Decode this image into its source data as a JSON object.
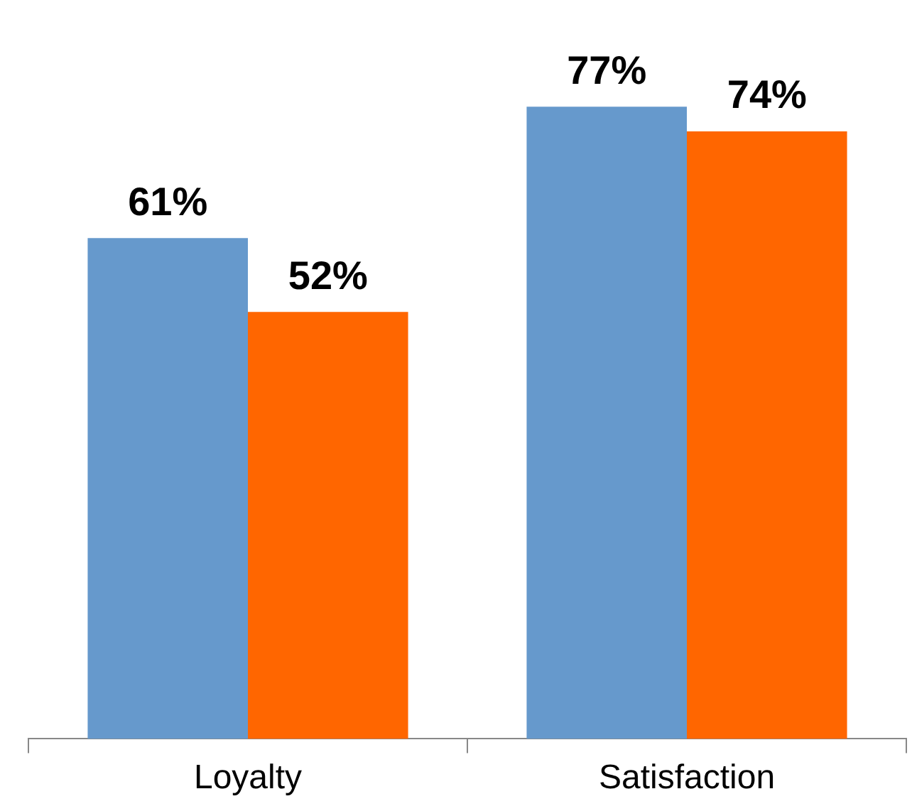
{
  "chart_data": {
    "type": "bar",
    "categories": [
      "Loyalty",
      "Satisfaction"
    ],
    "series": [
      {
        "color": "#6699cc",
        "values": [
          61,
          77
        ],
        "value_labels": [
          "61%",
          "77%"
        ]
      },
      {
        "color": "#ff6600",
        "values": [
          52,
          74
        ],
        "value_labels": [
          "52%",
          "74%"
        ]
      }
    ],
    "grid": false,
    "legend": false,
    "tick_labels": "x"
  }
}
